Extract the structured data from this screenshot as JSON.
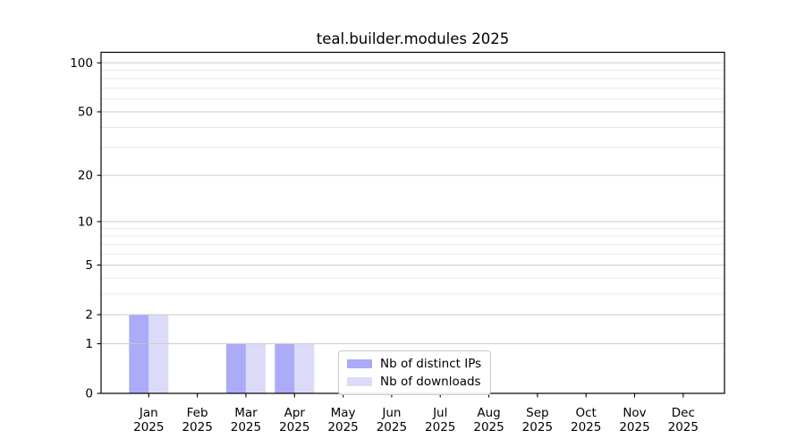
{
  "figure": {
    "background": "#ffffff",
    "frame_color": "#000000",
    "major_grid_color": "#c6c6c6",
    "minor_grid_color": "#e7e7e7"
  },
  "chart_data": {
    "type": "bar",
    "title": "teal.builder.modules 2025",
    "xlabel": "",
    "ylabel": "",
    "year_label": "2025",
    "categories": [
      "Jan",
      "Feb",
      "Mar",
      "Apr",
      "May",
      "Jun",
      "Jul",
      "Aug",
      "Sep",
      "Oct",
      "Nov",
      "Dec"
    ],
    "series": [
      {
        "name": "Nb of distinct IPs",
        "color": "#ababf7",
        "values": [
          2,
          0,
          1,
          1,
          0,
          0,
          0,
          0,
          0,
          0,
          0,
          0
        ]
      },
      {
        "name": "Nb of downloads",
        "color": "#dbdbf9",
        "values": [
          2,
          0,
          1,
          1,
          0,
          0,
          0,
          0,
          0,
          0,
          0,
          0
        ]
      }
    ],
    "y_scale": "log1p",
    "ylim": [
      0,
      116
    ],
    "y_major_ticks": [
      0,
      1,
      2,
      5,
      10,
      20,
      50,
      100
    ],
    "y_minor_grid": [
      3,
      4,
      6,
      7,
      8,
      9,
      30,
      40,
      60,
      70,
      80,
      90
    ],
    "grid": true,
    "legend_position": "bottom-center"
  }
}
